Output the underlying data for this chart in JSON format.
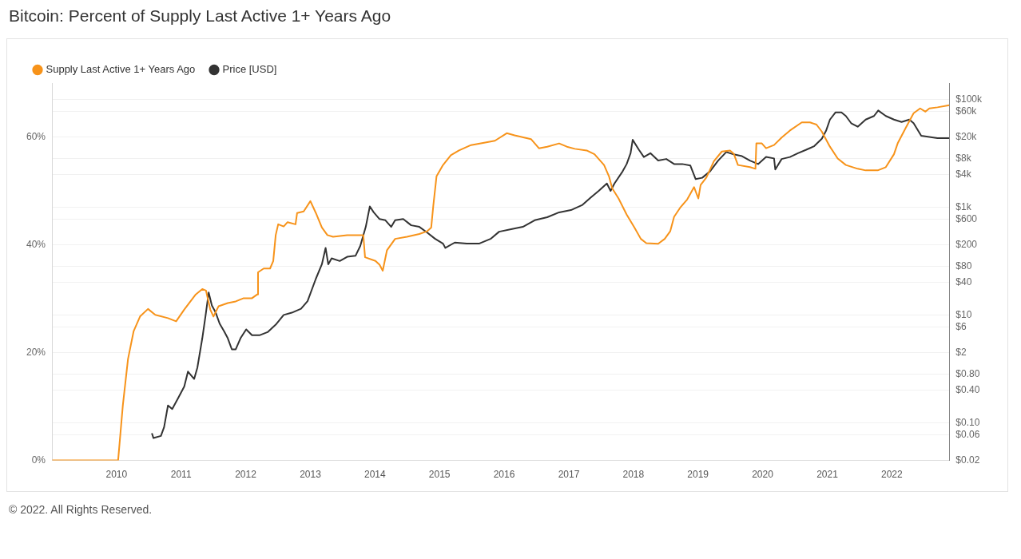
{
  "chart_data": {
    "type": "line",
    "title": "Bitcoin: Percent of Supply Last Active 1+ Years Ago",
    "annotations": [
      "© 2022. All Rights Reserved."
    ],
    "xlim": [
      "2009-01-01",
      "2022-11-22"
    ],
    "xticks": [
      "2010",
      "2011",
      "2012",
      "2013",
      "2014",
      "2015",
      "2016",
      "2017",
      "2018",
      "2019",
      "2020",
      "2021",
      "2022"
    ],
    "ylim": [
      0,
      70
    ],
    "yticks": [
      {
        "value": 0,
        "label": "0%"
      },
      {
        "value": 20,
        "label": "20%"
      },
      {
        "value": 40,
        "label": "40%"
      },
      {
        "value": 60,
        "label": "60%"
      }
    ],
    "y2lim": [
      0.02,
      200000
    ],
    "y2ticks": [
      {
        "value": 0.02,
        "label": "$0.02"
      },
      {
        "value": 0.06,
        "label": "$0.06"
      },
      {
        "value": 0.1,
        "label": "$0.10"
      },
      {
        "value": 0.4,
        "label": "$0.40"
      },
      {
        "value": 0.8,
        "label": "$0.80"
      },
      {
        "value": 2,
        "label": "$2"
      },
      {
        "value": 6,
        "label": "$6"
      },
      {
        "value": 10,
        "label": "$10"
      },
      {
        "value": 40,
        "label": "$40"
      },
      {
        "value": 80,
        "label": "$80"
      },
      {
        "value": 200,
        "label": "$200"
      },
      {
        "value": 600,
        "label": "$600"
      },
      {
        "value": 1000,
        "label": "$1k"
      },
      {
        "value": 4000,
        "label": "$4k"
      },
      {
        "value": 8000,
        "label": "$8k"
      },
      {
        "value": 20000,
        "label": "$20k"
      },
      {
        "value": 60000,
        "label": "$60k"
      },
      {
        "value": 100000,
        "label": "$100k"
      }
    ],
    "log": "y2",
    "grid": "y",
    "legend": "top left",
    "series": [
      {
        "name": "Supply Last Active 1+ Years Ago",
        "color": "#f7931a",
        "x": [
          "2009-01-03",
          "2010-01-10",
          "2010-02-06",
          "2010-03-07",
          "2010-04-08",
          "2010-05-14",
          "2010-06-28",
          "2010-08-08",
          "2010-10-19",
          "2010-12-04",
          "2011-01-19",
          "2011-03-25",
          "2011-05-01",
          "2011-05-22",
          "2011-06-15",
          "2011-07-03",
          "2011-08-01",
          "2011-09-22",
          "2011-11-06",
          "2011-12-21",
          "2012-02-06",
          "2012-03-07",
          "2012-03-11",
          "2012-04-12",
          "2012-05-18",
          "2012-06-05",
          "2012-06-19",
          "2012-07-03",
          "2012-08-03",
          "2012-08-25",
          "2012-10-09",
          "2012-10-18",
          "2012-11-24",
          "2013-01-01",
          "2013-02-01",
          "2013-03-07",
          "2013-04-07",
          "2013-05-09",
          "2013-07-28",
          "2013-10-27",
          "2013-11-06",
          "2014-01-04",
          "2014-01-27",
          "2014-02-14",
          "2014-03-10",
          "2014-04-25",
          "2014-07-01",
          "2014-09-09",
          "2014-10-22",
          "2014-11-15",
          "2014-11-27",
          "2014-12-15",
          "2015-01-21",
          "2015-03-06",
          "2015-04-21",
          "2015-06-28",
          "2015-09-04",
          "2015-11-10",
          "2016-01-16",
          "2016-03-01",
          "2016-06-01",
          "2016-07-16",
          "2016-09-01",
          "2016-11-07",
          "2016-12-21",
          "2017-02-04",
          "2017-04-12",
          "2017-05-26",
          "2017-07-19",
          "2017-08-16",
          "2017-09-03",
          "2017-10-09",
          "2017-11-24",
          "2018-01-07",
          "2018-02-12",
          "2018-03-15",
          "2018-05-21",
          "2018-06-27",
          "2018-07-28",
          "2018-08-19",
          "2018-09-25",
          "2018-11-01",
          "2018-12-10",
          "2019-01-03",
          "2019-01-16",
          "2019-02-18",
          "2019-04-01",
          "2019-05-16",
          "2019-07-01",
          "2019-07-22",
          "2019-08-15",
          "2019-10-22",
          "2019-11-22",
          "2019-11-27",
          "2019-12-28",
          "2020-01-21",
          "2020-03-06",
          "2020-04-18",
          "2020-06-04",
          "2020-08-10",
          "2020-09-25",
          "2020-11-01",
          "2020-12-01",
          "2021-01-16",
          "2021-03-01",
          "2021-04-16",
          "2021-06-22",
          "2021-08-06",
          "2021-10-13",
          "2021-11-28",
          "2022-01-13",
          "2022-02-04",
          "2022-03-19",
          "2022-05-04",
          "2022-06-10",
          "2022-07-10",
          "2022-08-01",
          "2022-09-16",
          "2022-11-22"
        ],
        "values": [
          0,
          0,
          10.3,
          18.8,
          24,
          26.7,
          28.1,
          27,
          26.4,
          25.8,
          28,
          30.8,
          31.8,
          31.5,
          28,
          26.7,
          28.6,
          29.2,
          29.5,
          30.1,
          30.1,
          30.8,
          34.9,
          35.6,
          35.6,
          37,
          41.8,
          43.8,
          43.4,
          44.2,
          43.8,
          45.9,
          46.2,
          48.1,
          45.9,
          43.2,
          41.8,
          41.5,
          41.8,
          41.8,
          37.7,
          37,
          36.3,
          35.2,
          39,
          41.1,
          41.5,
          42,
          42.5,
          43.2,
          47.3,
          52.7,
          54.8,
          56.6,
          57.5,
          58.5,
          58.9,
          59.3,
          60.7,
          60.3,
          59.6,
          57.9,
          58.2,
          58.8,
          58.2,
          57.8,
          57.5,
          56.8,
          54.8,
          52.7,
          50.5,
          48.6,
          45.6,
          43.2,
          41.1,
          40.3,
          40.2,
          41.1,
          42.5,
          45.2,
          47,
          48.4,
          50.7,
          48.6,
          51.1,
          52.5,
          55.5,
          57.3,
          57.5,
          56.9,
          54.8,
          54.4,
          54.1,
          58.8,
          58.8,
          57.9,
          58.5,
          59.9,
          61.2,
          62.7,
          62.7,
          62.3,
          61,
          58.2,
          56,
          54.8,
          54.1,
          53.8,
          53.8,
          54.4,
          56.8,
          58.9,
          61.6,
          64.4,
          65.3,
          64.7,
          65.3,
          65.5,
          65.9
        ]
      },
      {
        "name": "Price [USD]",
        "color": "#333333",
        "axis": "y2",
        "x": [
          "2010-07-20",
          "2010-07-29",
          "2010-09-09",
          "2010-09-27",
          "2010-10-19",
          "2010-11-12",
          "2010-12-16",
          "2011-01-19",
          "2011-02-09",
          "2011-03-16",
          "2011-04-03",
          "2011-05-01",
          "2011-05-19",
          "2011-06-06",
          "2011-06-24",
          "2011-07-16",
          "2011-08-07",
          "2011-09-01",
          "2011-09-22",
          "2011-10-15",
          "2011-11-06",
          "2011-12-03",
          "2012-01-04",
          "2012-02-06",
          "2012-03-19",
          "2012-05-04",
          "2012-06-19",
          "2012-08-03",
          "2012-09-18",
          "2012-11-09",
          "2012-12-16",
          "2013-02-01",
          "2013-03-07",
          "2013-03-28",
          "2013-04-12",
          "2013-05-01",
          "2013-06-16",
          "2013-07-28",
          "2013-09-13",
          "2013-10-10",
          "2013-11-10",
          "2013-12-03",
          "2013-12-25",
          "2014-01-27",
          "2014-03-01",
          "2014-04-03",
          "2014-04-25",
          "2014-06-10",
          "2014-07-25",
          "2014-09-09",
          "2014-10-22",
          "2014-12-06",
          "2015-01-21",
          "2015-02-03",
          "2015-03-28",
          "2015-06-04",
          "2015-08-12",
          "2015-10-19",
          "2015-12-04",
          "2016-02-10",
          "2016-04-16",
          "2016-06-22",
          "2016-09-01",
          "2016-11-07",
          "2017-01-13",
          "2017-03-19",
          "2017-05-04",
          "2017-06-19",
          "2017-08-04",
          "2017-08-25",
          "2017-09-16",
          "2017-11-01",
          "2017-11-24",
          "2017-12-16",
          "2017-12-28",
          "2018-02-01",
          "2018-03-01",
          "2018-04-07",
          "2018-05-21",
          "2018-07-06",
          "2018-08-19",
          "2018-10-04",
          "2018-11-19",
          "2018-12-19",
          "2019-01-25",
          "2019-03-10",
          "2019-04-25",
          "2019-06-10",
          "2019-07-22",
          "2019-09-07",
          "2019-10-22",
          "2019-12-07",
          "2020-01-21",
          "2020-03-06",
          "2020-03-13",
          "2020-04-18",
          "2020-06-04",
          "2020-07-19",
          "2020-09-04",
          "2020-10-19",
          "2020-12-01",
          "2020-12-25",
          "2021-01-16",
          "2021-02-16",
          "2021-03-22",
          "2021-04-16",
          "2021-05-16",
          "2021-06-22",
          "2021-08-06",
          "2021-09-22",
          "2021-10-16",
          "2021-11-28",
          "2022-01-13",
          "2022-02-25",
          "2022-04-10",
          "2022-05-04",
          "2022-06-16",
          "2022-08-01",
          "2022-09-16",
          "2022-11-22"
        ],
        "values": [
          0.064,
          0.052,
          0.057,
          0.083,
          0.21,
          0.18,
          0.29,
          0.47,
          0.89,
          0.65,
          1.05,
          3.7,
          9.5,
          26,
          15,
          11,
          6.9,
          5,
          3.7,
          2.3,
          2.3,
          3.7,
          5.4,
          4.2,
          4.2,
          4.8,
          6.6,
          10,
          11,
          13,
          18,
          47,
          87,
          175,
          87,
          112,
          100,
          120,
          125,
          190,
          430,
          1030,
          800,
          600,
          570,
          430,
          570,
          600,
          460,
          430,
          340,
          260,
          210,
          175,
          220,
          210,
          210,
          260,
          350,
          390,
          430,
          570,
          650,
          800,
          880,
          1100,
          1500,
          2000,
          2750,
          2000,
          2750,
          4600,
          6300,
          10000,
          17700,
          11600,
          8500,
          10000,
          7300,
          7800,
          6300,
          6300,
          5900,
          3300,
          3500,
          4600,
          7300,
          10500,
          9500,
          8800,
          7300,
          6300,
          8500,
          8000,
          5000,
          7800,
          8500,
          10000,
          11600,
          13500,
          18500,
          26000,
          42000,
          57000,
          57000,
          49000,
          36000,
          31000,
          42000,
          49000,
          62000,
          49000,
          42000,
          38000,
          42000,
          36000,
          21000,
          20000,
          19000,
          19000
        ]
      }
    ]
  }
}
